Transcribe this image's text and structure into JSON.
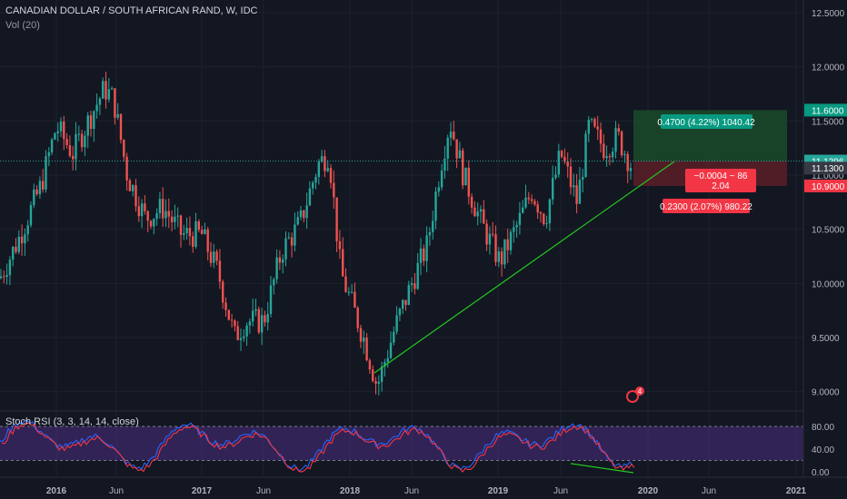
{
  "header": {
    "title": "CANADIAN DOLLAR / SOUTH AFRICAN RAND, W, IDC",
    "volume_label": "Vol (20)"
  },
  "rsi": {
    "label": "Stoch RSI (3, 3, 14, 14, close)",
    "ticks": [
      "80.00",
      "40.00",
      "0.00"
    ]
  },
  "colors": {
    "background": "#131722",
    "up": "#26a69a",
    "down": "#ef5350",
    "trendline": "#22c81e",
    "profit_zone": "#1b4b2a",
    "loss_zone": "#5c1f28",
    "rsi_band": "#4b2d7f",
    "stoch_k": "#2962ff",
    "stoch_d": "#f23645"
  },
  "chart_data": {
    "type": "candlestick",
    "y_ticks": [
      "12.5000",
      "12.0000",
      "11.5000",
      "11.0000",
      "10.5000",
      "10.0000",
      "9.5000",
      "9.0000"
    ],
    "x_ticks": [
      "2016",
      "Jun",
      "2017",
      "Jun",
      "2018",
      "Jun",
      "2019",
      "Jun",
      "2020",
      "Jun",
      "2021"
    ],
    "price_labels": {
      "target": "11.6000",
      "last": "11.1296",
      "entry": "11.1300",
      "stop": "10.9000"
    },
    "position": {
      "profit_label": "0.4700 (4.22%) 1040.42",
      "loss_label": "0.2300 (2.07%) 980.22",
      "center_line1": "−0.0004 ~ 86",
      "center_line2": "2.04"
    },
    "event_badge": "4",
    "ylim": [
      8.7,
      12.75
    ]
  }
}
